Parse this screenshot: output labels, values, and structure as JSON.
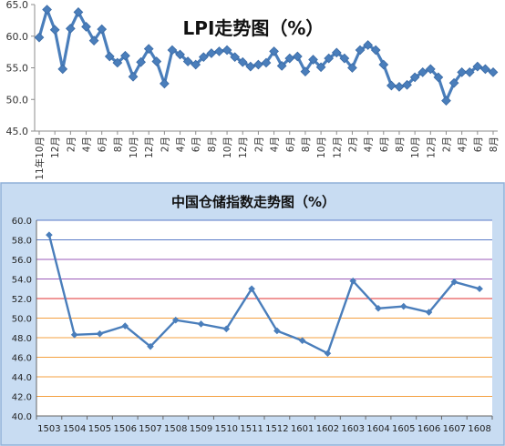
{
  "chart_data": [
    {
      "type": "line",
      "title": "LPI走势图（%）",
      "ylim": [
        45,
        65
      ],
      "yticks": [
        "45.0",
        "50.0",
        "55.0",
        "60.0",
        "65.0"
      ],
      "x_labels": [
        "11年10月",
        "12月",
        "2月",
        "4月",
        "6月",
        "8月",
        "10月",
        "12月",
        "2月",
        "4月",
        "6月",
        "8月",
        "10月",
        "12月",
        "2月",
        "4月",
        "6月",
        "8月",
        "10月",
        "12月",
        "2月",
        "4月",
        "6月",
        "8月",
        "10月",
        "12月",
        "2月",
        "4月",
        "6月",
        "8月"
      ],
      "series": [
        {
          "values": [
            59.8,
            64.2,
            61.0,
            54.8,
            61.2,
            63.8,
            61.5,
            59.3,
            61.1,
            56.8,
            55.8,
            56.9,
            53.6,
            55.9,
            58.0,
            56.0,
            52.5,
            57.8,
            57.1,
            56.0,
            55.5,
            56.7,
            57.3,
            57.6,
            57.8,
            56.7,
            55.9,
            55.2,
            55.5,
            55.8,
            57.6,
            55.3,
            56.5,
            56.8,
            54.4,
            56.3,
            55.1,
            56.5,
            57.4,
            56.5,
            55.0,
            57.8,
            58.6,
            57.8,
            55.5,
            52.2,
            52.0,
            52.3,
            53.5,
            54.3,
            54.8,
            53.5,
            49.8,
            52.6,
            54.3,
            54.3,
            55.2,
            54.8,
            54.3
          ]
        }
      ],
      "grid": false
    },
    {
      "type": "line",
      "title": "中国仓储指数走势图（%）",
      "ylim": [
        40,
        60
      ],
      "yticks": [
        "40.0",
        "42.0",
        "44.0",
        "46.0",
        "48.0",
        "50.0",
        "52.0",
        "54.0",
        "56.0",
        "58.0",
        "60.0"
      ],
      "categories": [
        "1503",
        "1504",
        "1505",
        "1506",
        "1507",
        "1508",
        "1509",
        "1510",
        "1511",
        "1512",
        "1601",
        "1602",
        "1603",
        "1604",
        "1605",
        "1606",
        "1607",
        "1608"
      ],
      "series": [
        {
          "values": [
            58.5,
            48.3,
            48.4,
            49.2,
            47.1,
            49.8,
            49.4,
            48.9,
            53.0,
            48.7,
            47.7,
            46.4,
            53.8,
            51.0,
            51.2,
            50.6,
            53.7,
            53.0
          ]
        }
      ],
      "grid": true,
      "grid_colors": [
        "#f4a040",
        "#f4a040",
        "#f4a040",
        "#f4a040",
        "#f4a040",
        "#f4a040",
        "#e03030",
        "#9a5ab8",
        "#9a5ab8",
        "#5a7ac8",
        "#5a7ac8"
      ],
      "colors": {
        "background": "#c8dcf2",
        "line": "#4a7ebb"
      }
    }
  ]
}
